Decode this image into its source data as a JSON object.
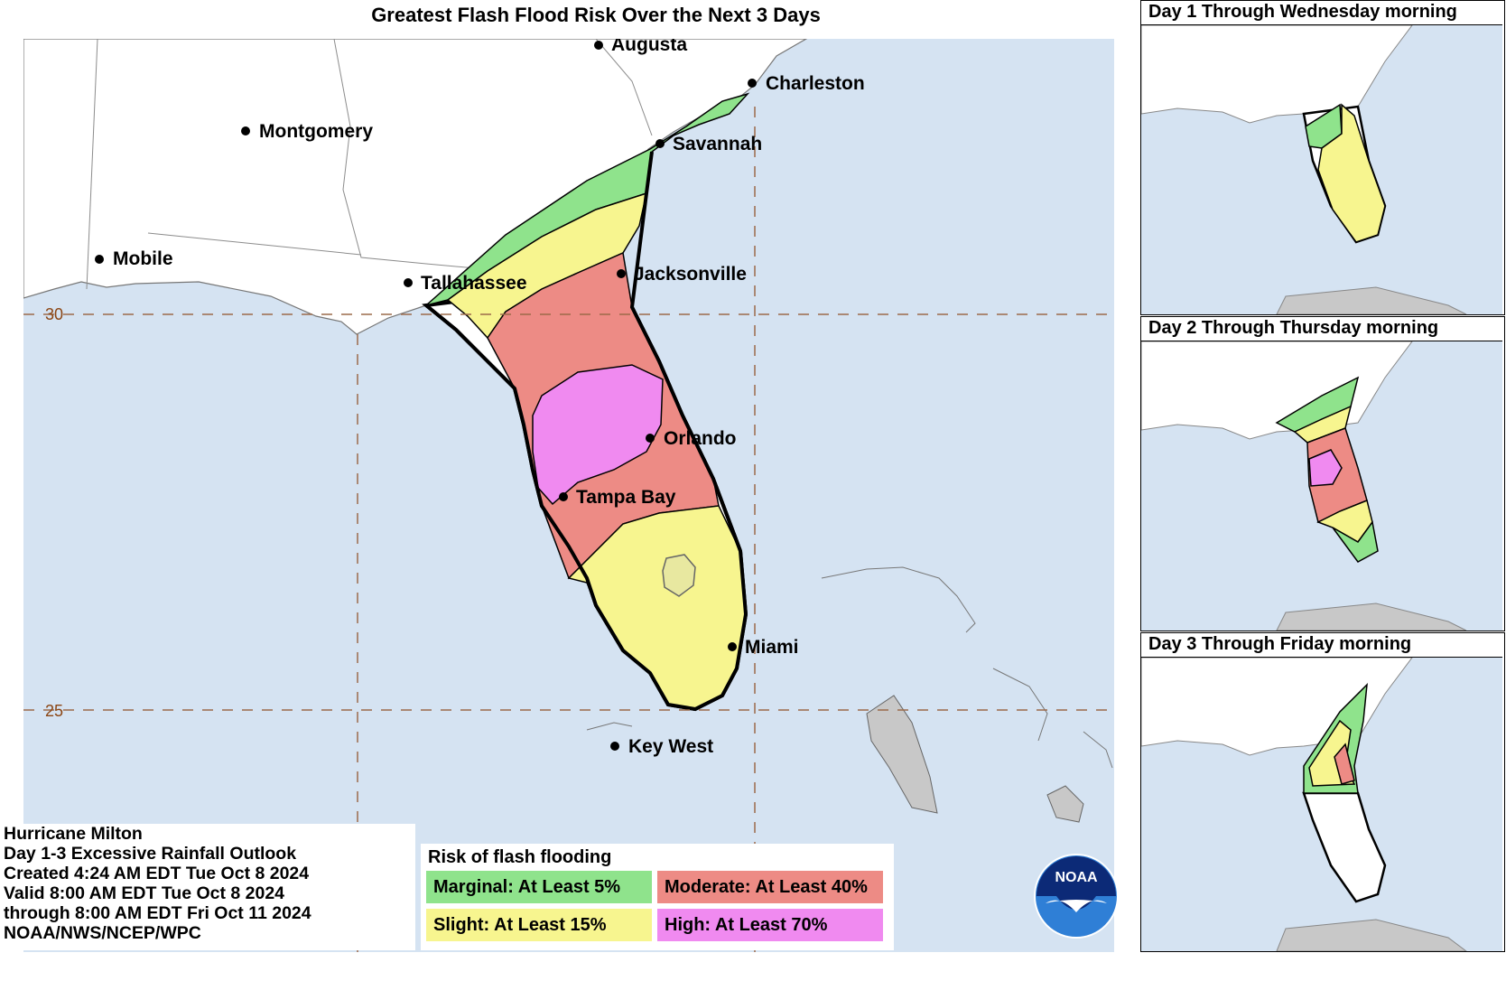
{
  "title": "Greatest Flash Flood Risk Over the Next 3 Days",
  "cities": {
    "augusta": "Augusta",
    "charleston": "Charleston",
    "montgomery": "Montgomery",
    "savannah": "Savannah",
    "mobile": "Mobile",
    "tallahassee": "Tallahassee",
    "jacksonville": "Jacksonville",
    "orlando": "Orlando",
    "tampa_bay": "Tampa Bay",
    "miami": "Miami",
    "key_west": "Key West"
  },
  "latitudes": {
    "lat30": "30",
    "lat25": "25"
  },
  "info": {
    "line1": "Hurricane Milton",
    "line2": "Day 1-3 Excessive Rainfall Outlook",
    "line3": "Created 4:24 AM EDT Tue Oct 8 2024",
    "line4": "Valid 8:00 AM EDT Tue Oct 8 2024",
    "line5": "through 8:00 AM EDT Fri Oct 11 2024",
    "line6": "NOAA/NWS/NCEP/WPC"
  },
  "legend": {
    "title": "Risk of flash flooding",
    "marginal": "Marginal: At Least 5%",
    "moderate": "Moderate: At Least 40%",
    "slight": "Slight: At Least 15%",
    "high": "High: At Least 70%"
  },
  "logo_text": "NOAA",
  "panels": {
    "day1": "Day 1 Through Wednesday morning",
    "day2": "Day 2 Through Thursday morning",
    "day3": "Day 3 Through Friday morning"
  },
  "colors": {
    "ocean": "#d5e3f2",
    "land": "#ffffff",
    "marginal": "#8fe38c",
    "slight": "#f7f58f",
    "moderate": "#ed8b85",
    "high": "#f08af0",
    "cuba": "#c8c8c8",
    "grid": "#9b6b4a"
  }
}
